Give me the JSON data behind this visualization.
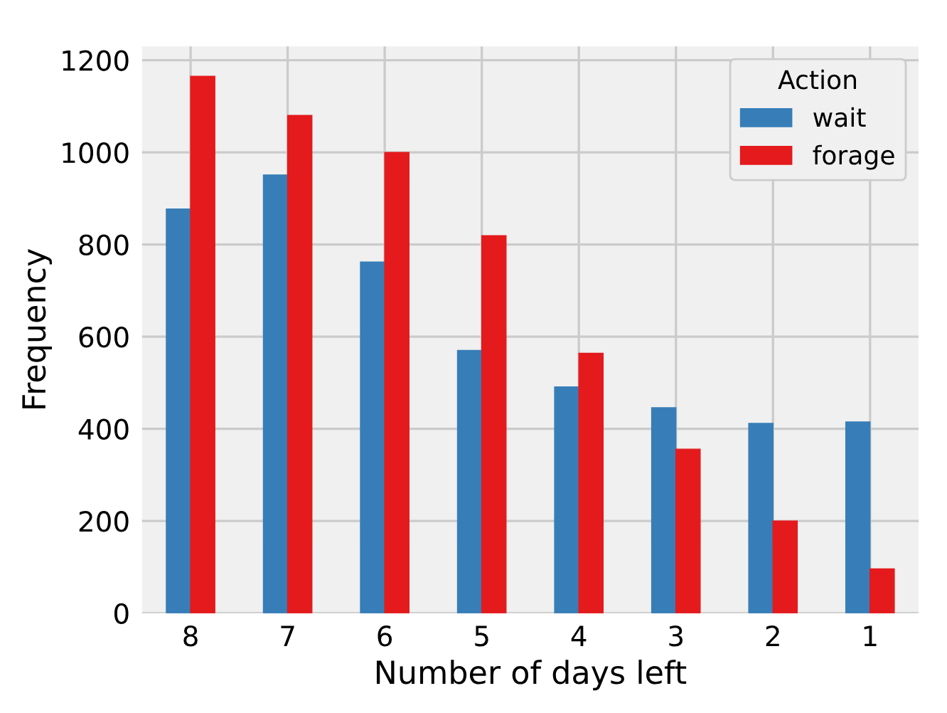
{
  "chart_data": {
    "type": "bar",
    "xlabel": "Number of days left",
    "ylabel": "Frequency",
    "legend_title": "Action",
    "categories": [
      "8",
      "7",
      "6",
      "5",
      "4",
      "3",
      "2",
      "1"
    ],
    "series": [
      {
        "name": "wait",
        "color": "#377eb8",
        "values": [
          877,
          951,
          762,
          570,
          491,
          446,
          412,
          415
        ]
      },
      {
        "name": "forage",
        "color": "#e41a1c",
        "values": [
          1165,
          1080,
          1000,
          819,
          564,
          356,
          200,
          96
        ]
      }
    ],
    "ylim": [
      0,
      1230
    ],
    "yticks": [
      0,
      200,
      400,
      600,
      800,
      1000,
      1200
    ],
    "grid": true,
    "legend": "top right"
  }
}
